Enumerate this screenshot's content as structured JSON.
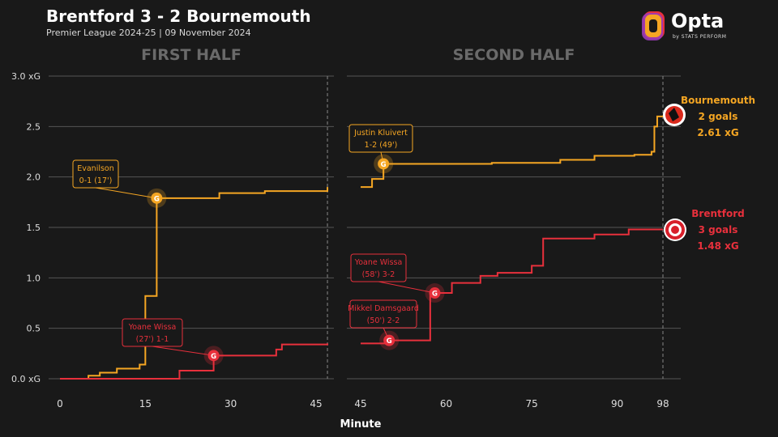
{
  "header": {
    "title": "Brentford 3 - 2 Bournemouth",
    "subtitle": "Premier League 2024-25 | 09 November 2024"
  },
  "brand": {
    "name": "Opta",
    "sub": "by STATS PERFORM"
  },
  "chart_data": {
    "type": "line",
    "xlabel": "Minute",
    "ylim": [
      0,
      3.0
    ],
    "y_ticks": [
      "0.0 xG",
      "0.5",
      "1.0",
      "1.5",
      "2.0",
      "2.5",
      "3.0 xG"
    ],
    "y_tick_values": [
      0,
      0.5,
      1.0,
      1.5,
      2.0,
      2.5,
      3.0
    ],
    "grid": true,
    "panels": [
      {
        "label": "FIRST HALF",
        "xlim": [
          0,
          49
        ],
        "x_ticks": [
          "0",
          "15",
          "30",
          "45"
        ],
        "x_tick_values": [
          0,
          15,
          30,
          45
        ],
        "end_marker": 47
      },
      {
        "label": "SECOND HALF",
        "xlim": [
          45,
          100
        ],
        "x_ticks": [
          "45",
          "60",
          "75",
          "90",
          "98"
        ],
        "x_tick_values": [
          45,
          60,
          75,
          90,
          98
        ],
        "end_marker": 98
      }
    ],
    "series": [
      {
        "name": "Bournemouth",
        "color": "#f5a623",
        "goals_text": "2 goals",
        "xg_text": "2.61 xG",
        "first_half": [
          [
            0,
            0
          ],
          [
            5,
            0.03
          ],
          [
            7,
            0.06
          ],
          [
            10,
            0.1
          ],
          [
            14,
            0.14
          ],
          [
            15,
            0.82
          ],
          [
            17,
            1.79
          ],
          [
            28,
            1.84
          ],
          [
            36,
            1.86
          ],
          [
            47,
            1.9
          ]
        ],
        "second_half": [
          [
            45,
            1.9
          ],
          [
            47,
            1.98
          ],
          [
            49,
            2.13
          ],
          [
            68,
            2.14
          ],
          [
            80,
            2.17
          ],
          [
            86,
            2.21
          ],
          [
            93,
            2.22
          ],
          [
            96,
            2.25
          ],
          [
            96.5,
            2.5
          ],
          [
            97,
            2.6
          ],
          [
            98,
            2.61
          ]
        ],
        "goals": [
          {
            "half": 1,
            "minute": 17,
            "xg": 1.79,
            "label_lines": [
              "Evanilson",
              "0-1 (17')"
            ]
          },
          {
            "half": 2,
            "minute": 49,
            "xg": 2.13,
            "label_lines": [
              "Justin Kluivert",
              "1-2 (49')"
            ]
          }
        ]
      },
      {
        "name": "Brentford",
        "color": "#e8303c",
        "goals_text": "3 goals",
        "xg_text": "1.48 xG",
        "first_half": [
          [
            0,
            0
          ],
          [
            21,
            0.08
          ],
          [
            27,
            0.23
          ],
          [
            38,
            0.29
          ],
          [
            39,
            0.34
          ],
          [
            47,
            0.35
          ]
        ],
        "second_half": [
          [
            45,
            0.35
          ],
          [
            50,
            0.38
          ],
          [
            57,
            0.38
          ],
          [
            57.2,
            0.85
          ],
          [
            61,
            0.95
          ],
          [
            66,
            1.02
          ],
          [
            69,
            1.05
          ],
          [
            75,
            1.12
          ],
          [
            77,
            1.39
          ],
          [
            86,
            1.43
          ],
          [
            92,
            1.48
          ],
          [
            98,
            1.48
          ]
        ],
        "goals": [
          {
            "half": 1,
            "minute": 27,
            "xg": 0.23,
            "label_lines": [
              "Yoane Wissa",
              "(27') 1-1"
            ]
          },
          {
            "half": 2,
            "minute": 50,
            "xg": 0.38,
            "label_lines": [
              "Mikkel Damsgaard",
              "(50') 2-2"
            ]
          },
          {
            "half": 2,
            "minute": 58,
            "xg": 0.85,
            "label_lines": [
              "Yoane Wissa",
              "(58') 3-2"
            ]
          }
        ]
      }
    ],
    "goal_marker_text": "G"
  }
}
